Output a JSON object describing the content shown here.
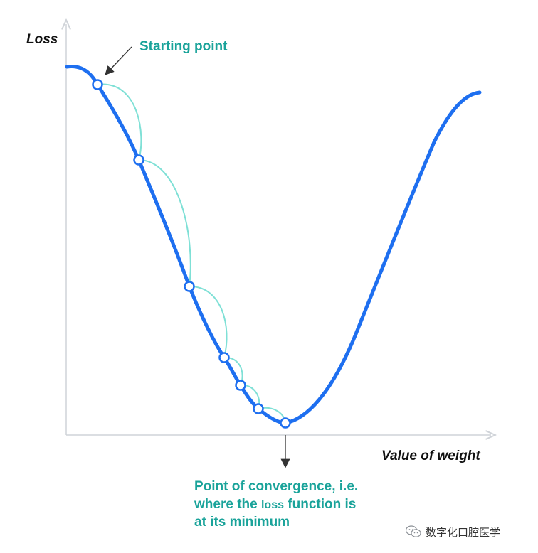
{
  "labels": {
    "y_axis": "Loss",
    "x_axis": "Value of weight",
    "start": "Starting point",
    "convergence_line1": "Point of convergence, i.e.",
    "convergence_line2_a": "where the ",
    "convergence_line2_b": "loss",
    "convergence_line2_c": " function is",
    "convergence_line3": "at its minimum"
  },
  "watermark": {
    "text": "数字化口腔医学",
    "icon": "wechat-logo-icon"
  },
  "colors": {
    "curve": "#1e6ff0",
    "steps": "#7fe0d6",
    "annotation": "#1aa39a",
    "axis": "#cfd3d8",
    "arrow": "#333333"
  },
  "gradient_steps": {
    "count": 7
  }
}
